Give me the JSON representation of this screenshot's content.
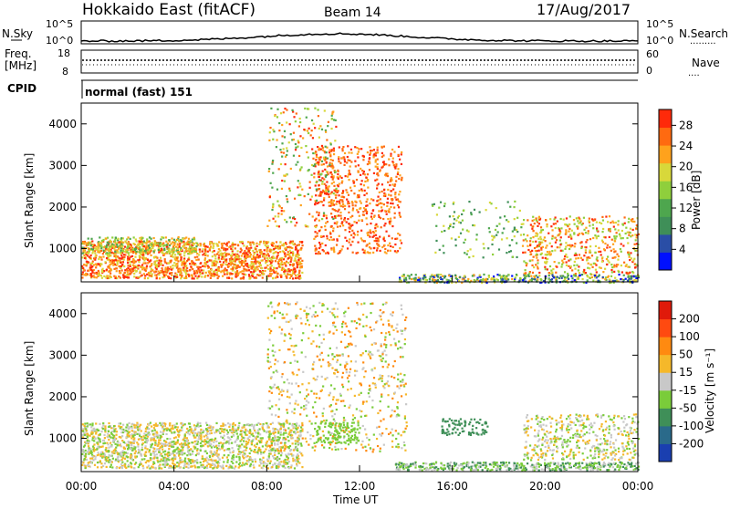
{
  "header": {
    "title": "Hokkaido East (fitACF)",
    "beam": "Beam 14",
    "date": "17/Aug/2017"
  },
  "top_panels": {
    "nsky": {
      "label": "N.Sky",
      "ticks": [
        "10^5",
        "10^0"
      ],
      "right_ticks": [
        "10^5",
        "10^0"
      ],
      "right_label": "N.Search",
      "right_legend": "........."
    },
    "freq": {
      "label_line1": "Freq.",
      "label_line2": "[MHz]",
      "ticks": [
        "18",
        "8"
      ],
      "right_ticks": [
        "60",
        "0"
      ],
      "right_label": "Nave",
      "right_legend": "...."
    },
    "cpid": {
      "label": "CPID",
      "mode": "normal (fast) 151"
    }
  },
  "chart_data": [
    {
      "type": "heatmap",
      "ylabel": "Slant Range [km]",
      "xlabel": "",
      "y_ticks": [
        "1000",
        "2000",
        "3000",
        "4000"
      ],
      "ylim": [
        200,
        4500
      ],
      "colorbar": {
        "label": "Power [dB]",
        "tick_labels": [
          "4",
          "8",
          "12",
          "16",
          "20",
          "24",
          "28"
        ],
        "colors": [
          "#0010ff",
          "#2a4ea6",
          "#3f8f58",
          "#4ea64e",
          "#8fcf3c",
          "#d8d83a",
          "#ffa21c",
          "#ff6a10",
          "#ff2a0a"
        ]
      }
    },
    {
      "type": "heatmap",
      "ylabel": "Slant Range [km]",
      "xlabel": "Time UT",
      "x_ticks": [
        "00:00",
        "04:00",
        "08:00",
        "12:00",
        "16:00",
        "20:00",
        "00:00"
      ],
      "y_ticks": [
        "1000",
        "2000",
        "3000",
        "4000"
      ],
      "ylim": [
        200,
        4500
      ],
      "colorbar": {
        "label": "Velocity [m s⁻¹]",
        "tick_labels": [
          "200",
          "100",
          "50",
          "15",
          "-15",
          "-50",
          "-100",
          "-200"
        ],
        "colors": [
          "#1a3fb0",
          "#2a6a8a",
          "#3f8f58",
          "#7acc3a",
          "#c8c8c8",
          "#f5b82a",
          "#ff8a10",
          "#ff4a10",
          "#e01a0a"
        ]
      }
    }
  ]
}
